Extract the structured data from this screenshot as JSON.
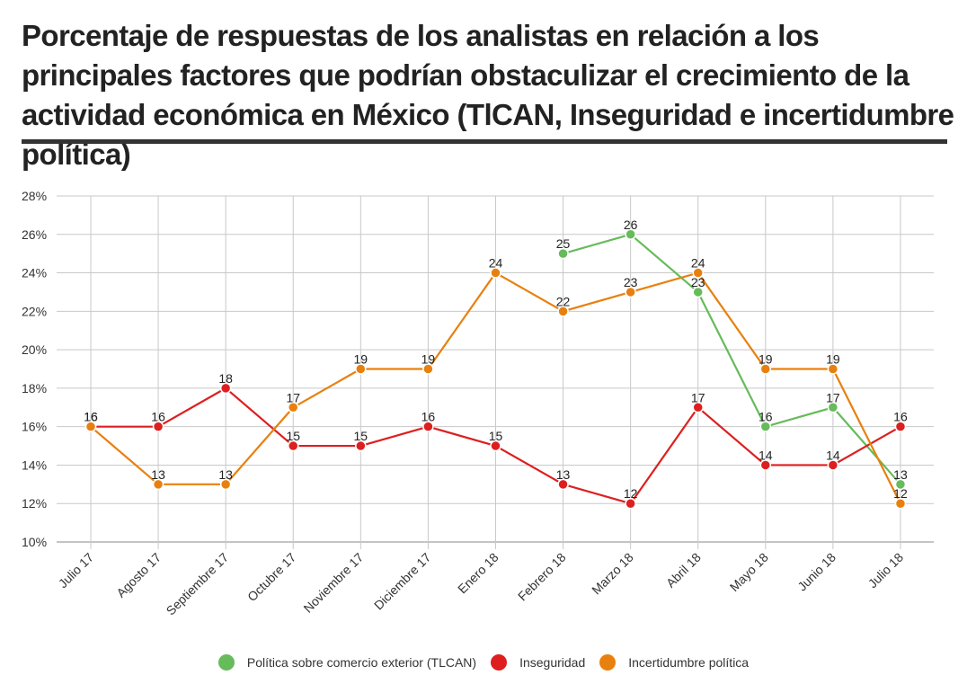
{
  "title": "Porcentaje de respuestas de los analistas en relación a los principales factores que podrían obstaculizar el crecimiento de la actividad económica en México (TlCAN, Inseguridad e incertidumbre política)",
  "chart_data": {
    "type": "line",
    "title": "Porcentaje de respuestas de los analistas en relación a los principales factores que podrían obstaculizar el crecimiento de la actividad económica en México (TlCAN, Inseguridad e incertidumbre política)",
    "xlabel": "",
    "ylabel": "",
    "categories": [
      "Julio 17",
      "Agosto 17",
      "Septiembre 17",
      "Octubre 17",
      "Noviembre 17",
      "Diciembre 17",
      "Enero 18",
      "Febrero 18",
      "Marzo 18",
      "Abril 18",
      "Mayo 18",
      "Junio 18",
      "Julio 18"
    ],
    "ylim": [
      10,
      28
    ],
    "yticks": [
      10,
      12,
      14,
      16,
      18,
      20,
      22,
      24,
      26,
      28
    ],
    "ytick_labels": [
      "10%",
      "12%",
      "14%",
      "16%",
      "18%",
      "20%",
      "22%",
      "24%",
      "26%",
      "28%"
    ],
    "grid": true,
    "legend_position": "bottom",
    "series": [
      {
        "name": "Política sobre comercio exterior (TLCAN)",
        "color": "#66bb5a",
        "values": [
          null,
          null,
          null,
          null,
          null,
          null,
          null,
          25,
          26,
          23,
          16,
          17,
          13
        ]
      },
      {
        "name": "Inseguridad",
        "color": "#dd1f1f",
        "values": [
          16,
          16,
          18,
          15,
          15,
          16,
          15,
          13,
          12,
          17,
          14,
          14,
          16
        ]
      },
      {
        "name": "Incertidumbre política",
        "color": "#e8800f",
        "values": [
          16,
          13,
          13,
          17,
          19,
          19,
          24,
          22,
          23,
          24,
          19,
          19,
          12
        ]
      }
    ]
  }
}
